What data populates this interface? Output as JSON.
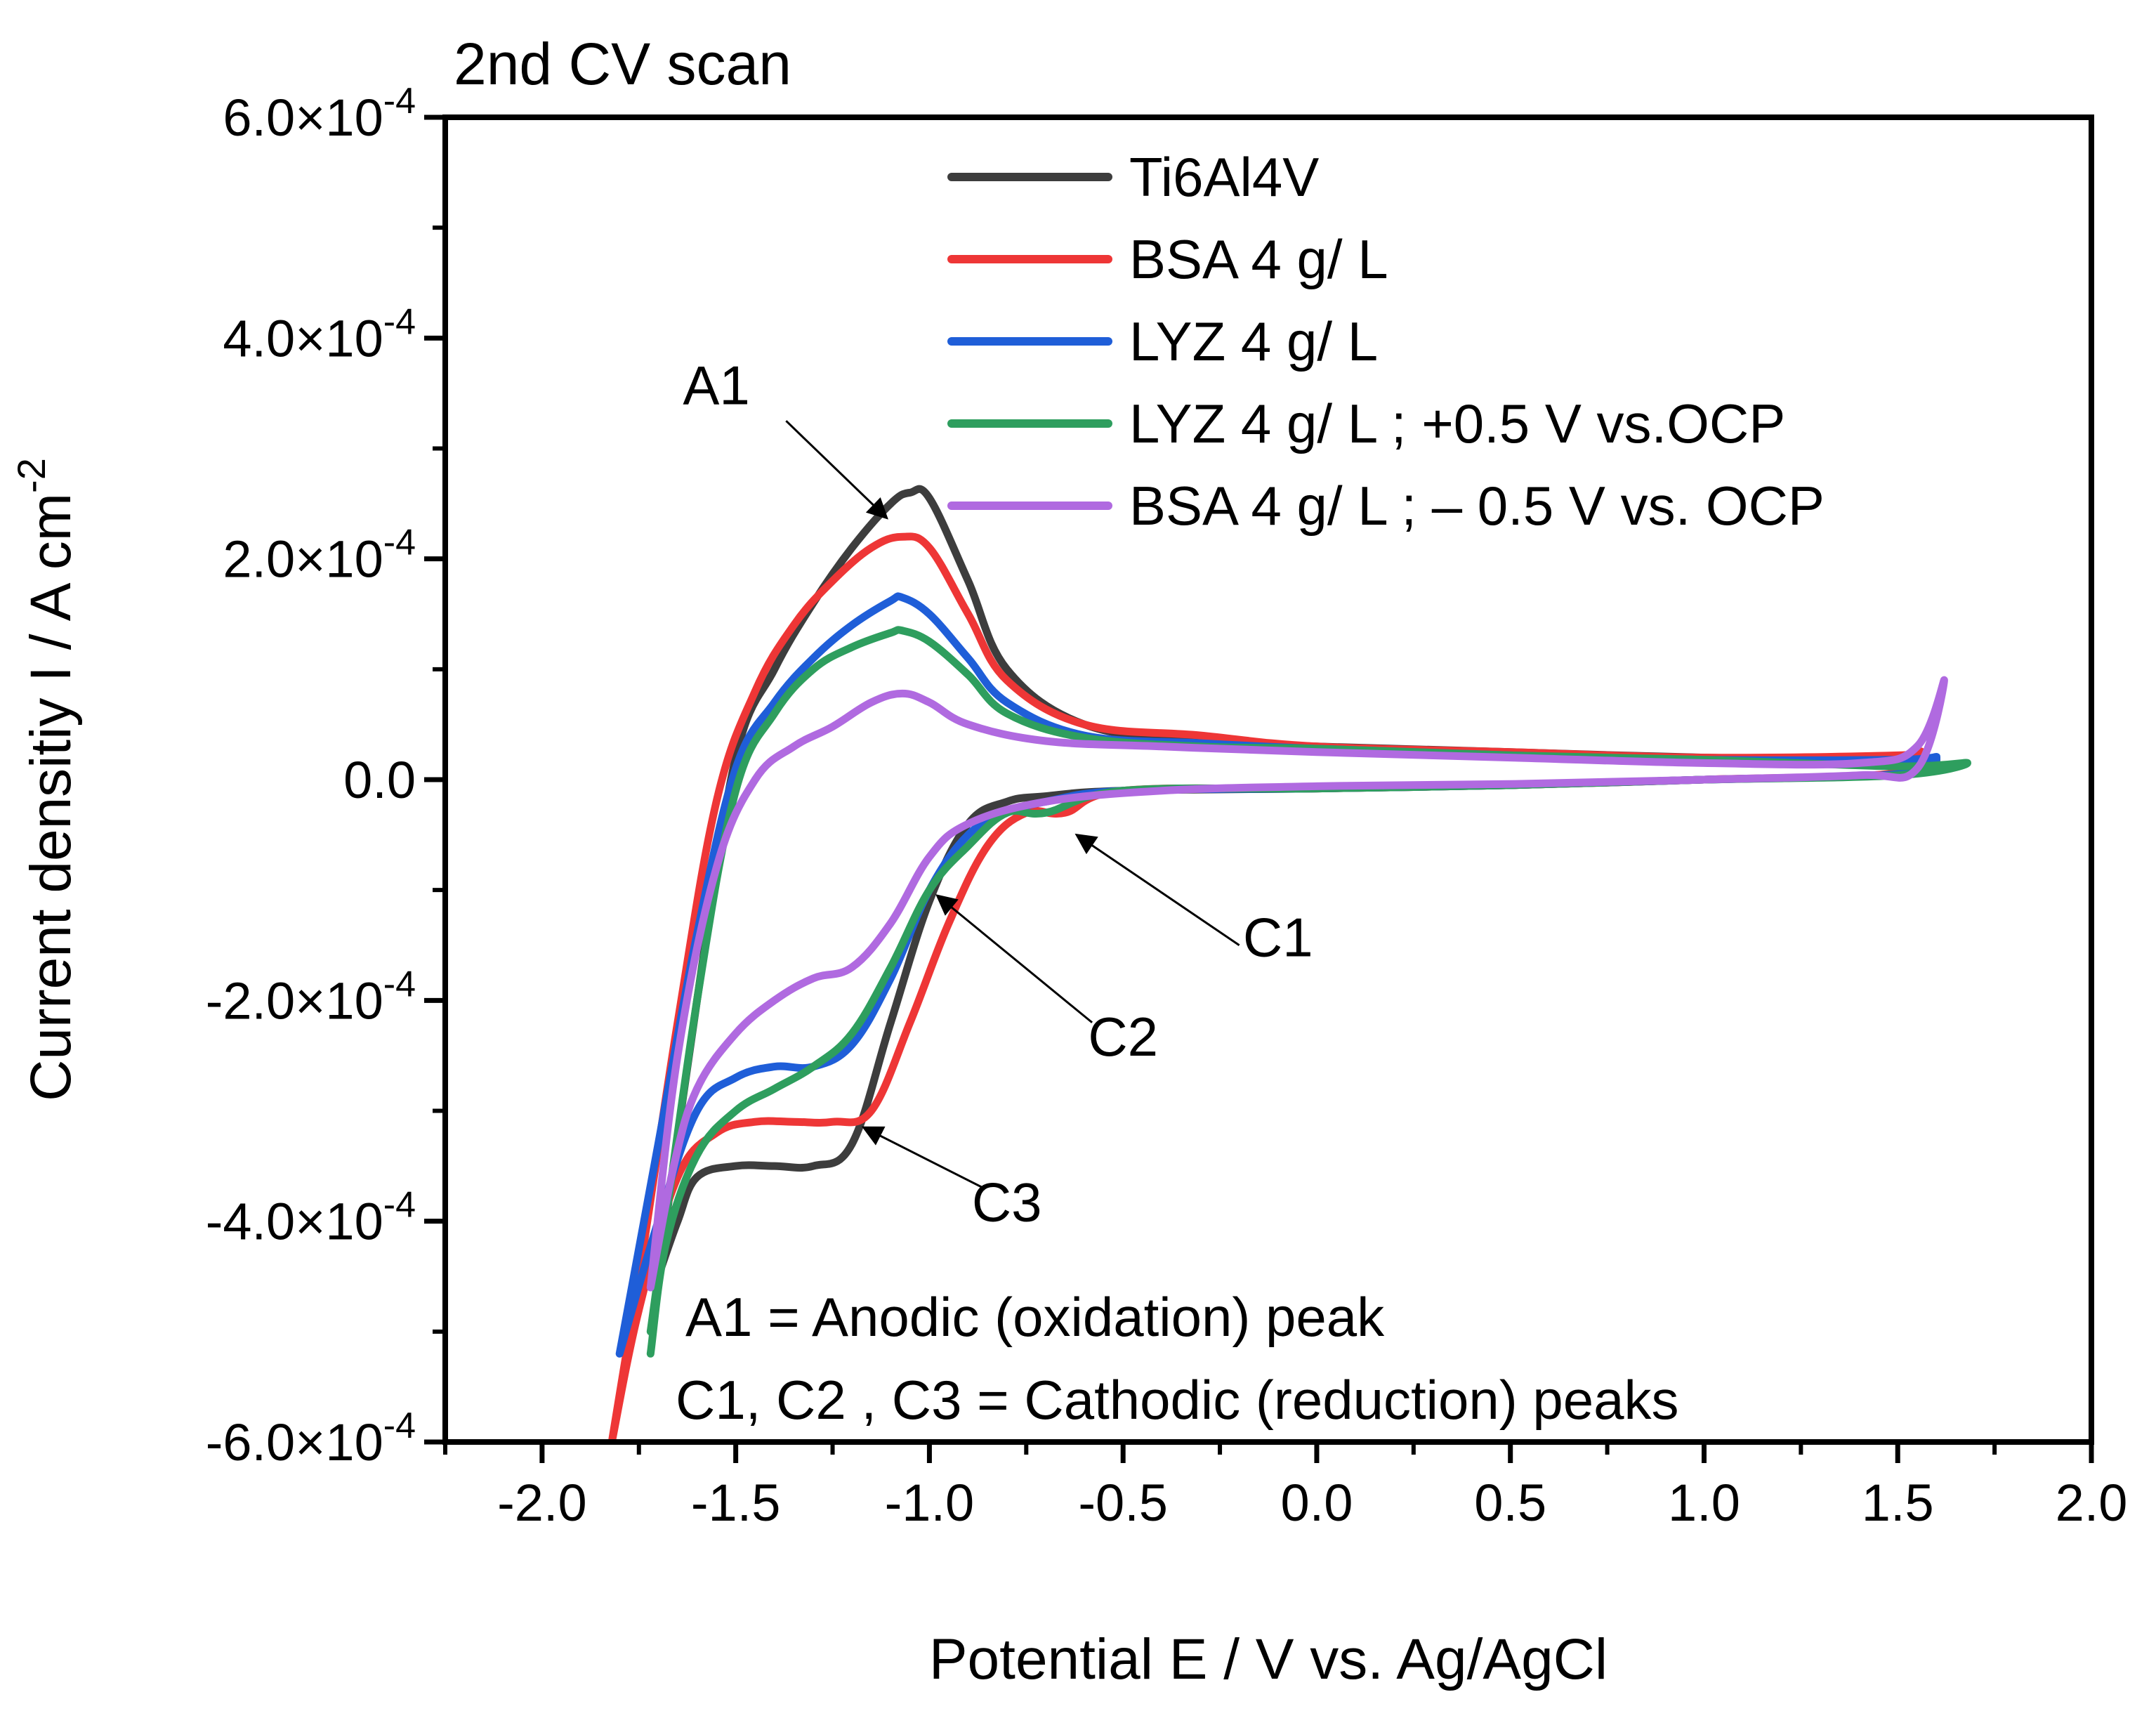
{
  "chart_data": {
    "type": "line",
    "title": "2nd CV scan",
    "xlabel": "Potential E / V vs. Ag/AgCl",
    "ylabel_main": "Current densitiy I / A cm",
    "ylabel_sup": "-2",
    "xlim": [
      -2.25,
      2.0
    ],
    "ylim": [
      -0.0006,
      0.0006
    ],
    "x_ticks": [
      -2.0,
      -1.5,
      -1.0,
      -0.5,
      0.0,
      0.5,
      1.0,
      1.5,
      2.0
    ],
    "x_tick_labels": [
      "-2.0",
      "-1.5",
      "-1.0",
      "-0.5",
      "0.0",
      "0.5",
      "1.0",
      "1.5",
      "2.0"
    ],
    "y_ticks": [
      -0.0006,
      -0.0004,
      -0.0002,
      0.0,
      0.0002,
      0.0004,
      0.0006
    ],
    "y_tick_labels": [
      {
        "base": "-6.0×10",
        "exp": "-4"
      },
      {
        "base": "-4.0×10",
        "exp": "-4"
      },
      {
        "base": "-2.0×10",
        "exp": "-4"
      },
      {
        "base": "0.0",
        "exp": ""
      },
      {
        "base": "2.0×10",
        "exp": "-4"
      },
      {
        "base": "4.0×10",
        "exp": "-4"
      },
      {
        "base": "6.0×10",
        "exp": "-4"
      }
    ],
    "legend_position": "top-right",
    "series": [
      {
        "name": "Ti6Al4V",
        "color": "#3d3d3d",
        "x": [
          -1.7,
          -1.6,
          -1.5,
          -1.4,
          -1.3,
          -1.2,
          -1.1,
          -1.05,
          -1.0,
          -0.9,
          -0.8,
          -0.6,
          -0.3,
          0.0,
          0.5,
          1.0,
          1.5,
          1.6,
          1.5,
          1.0,
          0.5,
          0.0,
          -0.5,
          -0.7,
          -0.8,
          -0.9,
          -1.0,
          -1.1,
          -1.2,
          -1.3,
          -1.4,
          -1.5,
          -1.6,
          -1.65,
          -1.7
        ],
        "y": [
          -0.00045,
          -0.0002,
          2e-05,
          0.0001,
          0.00016,
          0.00021,
          0.00025,
          0.00026,
          0.000255,
          0.00018,
          0.0001,
          5e-05,
          3.5e-05,
          3e-05,
          2.5e-05,
          2e-05,
          1.8e-05,
          1.9e-05,
          5e-06,
          0.0,
          -5e-06,
          -8e-06,
          -1e-05,
          -1.5e-05,
          -2e-05,
          -4e-05,
          -0.00011,
          -0.00022,
          -0.00033,
          -0.00035,
          -0.00035,
          -0.00035,
          -0.00036,
          -0.0004,
          -0.00045
        ]
      },
      {
        "name": "BSA 4 g/ L",
        "color": "#ee3636",
        "x": [
          -1.82,
          -1.75,
          -1.65,
          -1.55,
          -1.45,
          -1.35,
          -1.25,
          -1.15,
          -1.07,
          -1.0,
          -0.9,
          -0.8,
          -0.6,
          -0.3,
          0.0,
          0.5,
          1.0,
          1.5,
          1.55,
          1.5,
          1.0,
          0.5,
          0.0,
          -0.5,
          -0.65,
          -0.75,
          -0.85,
          -0.95,
          -1.05,
          -1.15,
          -1.25,
          -1.35,
          -1.45,
          -1.55,
          -1.65,
          -1.75,
          -1.82
        ],
        "y": [
          -0.0006,
          -0.00045,
          -0.00022,
          -2e-05,
          8e-05,
          0.00014,
          0.00018,
          0.00021,
          0.00022,
          0.00021,
          0.00015,
          9e-05,
          5e-05,
          4e-05,
          3e-05,
          2.5e-05,
          2e-05,
          2.2e-05,
          2.5e-05,
          6e-06,
          0.0,
          -5e-06,
          -8e-06,
          -1e-05,
          -3e-05,
          -3e-05,
          -6e-05,
          -0.00013,
          -0.00022,
          -0.0003,
          -0.00031,
          -0.00031,
          -0.00031,
          -0.00032,
          -0.00036,
          -0.00048,
          -0.0006
        ]
      },
      {
        "name": "LYZ  4 g/ L",
        "color": "#1f5ed8",
        "x": [
          -1.8,
          -1.7,
          -1.6,
          -1.5,
          -1.4,
          -1.3,
          -1.2,
          -1.1,
          -1.07,
          -1.0,
          -0.9,
          -0.8,
          -0.6,
          -0.3,
          0.0,
          0.5,
          1.0,
          1.5,
          1.6,
          1.5,
          1.0,
          0.5,
          0.0,
          -0.5,
          -0.7,
          -0.8,
          -0.9,
          -1.0,
          -1.1,
          -1.2,
          -1.3,
          -1.4,
          -1.5,
          -1.6,
          -1.7,
          -1.8
        ],
        "y": [
          -0.00052,
          -0.00033,
          -0.00014,
          1e-05,
          7e-05,
          0.00011,
          0.00014,
          0.000162,
          0.000165,
          0.00015,
          0.00011,
          7e-05,
          4e-05,
          3.3e-05,
          2.8e-05,
          2.2e-05,
          1.8e-05,
          1.8e-05,
          2e-05,
          5e-06,
          0.0,
          -5e-06,
          -8e-06,
          -1e-05,
          -2e-05,
          -3e-05,
          -5e-05,
          -0.0001,
          -0.00018,
          -0.00024,
          -0.00026,
          -0.00026,
          -0.00027,
          -0.0003,
          -0.0004,
          -0.00052
        ]
      },
      {
        "name": "LYZ 4 g/ L ; +0.5 V vs.OCP",
        "color": "#2e9e5e",
        "x": [
          -1.72,
          -1.6,
          -1.5,
          -1.4,
          -1.3,
          -1.2,
          -1.1,
          -1.07,
          -1.0,
          -0.9,
          -0.8,
          -0.6,
          -0.3,
          0.0,
          0.5,
          1.0,
          1.5,
          1.68,
          1.5,
          1.0,
          0.5,
          0.0,
          -0.5,
          -0.7,
          -0.8,
          -0.9,
          -1.0,
          -1.1,
          -1.2,
          -1.3,
          -1.4,
          -1.5,
          -1.6,
          -1.68,
          -1.72
        ],
        "y": [
          -0.0005,
          -0.0002,
          -1e-05,
          6e-05,
          0.0001,
          0.00012,
          0.000133,
          0.000135,
          0.000125,
          9.5e-05,
          6e-05,
          3.8e-05,
          3e-05,
          2.8e-05,
          2.2e-05,
          1.8e-05,
          1.2e-05,
          1.5e-05,
          4e-06,
          0.0,
          -5e-06,
          -8e-06,
          -1e-05,
          -3e-05,
          -3e-05,
          -6e-05,
          -0.0001,
          -0.00017,
          -0.00023,
          -0.00026,
          -0.00028,
          -0.0003,
          -0.00034,
          -0.00042,
          -0.00052
        ]
      },
      {
        "name": "BSA 4 g/ L ; – 0.5 V vs. OCP",
        "color": "#b06ae0",
        "x": [
          -1.72,
          -1.65,
          -1.55,
          -1.45,
          -1.35,
          -1.25,
          -1.15,
          -1.07,
          -1.0,
          -0.9,
          -0.7,
          -0.4,
          0.0,
          0.5,
          1.0,
          1.4,
          1.55,
          1.62,
          1.55,
          1.4,
          1.0,
          0.5,
          0.0,
          -0.4,
          -0.7,
          -0.9,
          -1.0,
          -1.1,
          -1.2,
          -1.3,
          -1.4,
          -1.5,
          -1.6,
          -1.66,
          -1.72
        ],
        "y": [
          -0.00046,
          -0.00025,
          -8e-05,
          0.0,
          3e-05,
          4.8e-05,
          7e-05,
          7.8e-05,
          7e-05,
          5e-05,
          3.5e-05,
          3e-05,
          2.5e-05,
          2e-05,
          1.5e-05,
          1.5e-05,
          3e-05,
          9e-05,
          1e-05,
          4e-06,
          0.0,
          -4e-06,
          -6e-06,
          -1e-05,
          -2e-05,
          -4e-05,
          -7e-05,
          -0.00013,
          -0.00017,
          -0.00018,
          -0.0002,
          -0.00023,
          -0.00028,
          -0.00035,
          -0.00046
        ]
      }
    ],
    "annotations": [
      {
        "label": "A1",
        "text_x": -1.55,
        "text_y": 0.00034,
        "arrow_from": [
          -1.37,
          0.000325
        ],
        "arrow_to": [
          -1.11,
          0.000237
        ]
      },
      {
        "label": "C1",
        "text_x": -0.1,
        "text_y": -0.00016,
        "arrow_from": [
          -0.2,
          -0.00015
        ],
        "arrow_to": [
          -0.62,
          -5e-05
        ]
      },
      {
        "label": "C2",
        "text_x": -0.5,
        "text_y": -0.00025,
        "arrow_from": [
          -0.58,
          -0.00022
        ],
        "arrow_to": [
          -0.98,
          -0.000105
        ]
      },
      {
        "label": "C3",
        "text_x": -0.8,
        "text_y": -0.0004,
        "arrow_from": [
          -0.86,
          -0.00037
        ],
        "arrow_to": [
          -1.17,
          -0.000315
        ]
      }
    ],
    "notes": [
      "A1 = Anodic (oxidation) peak",
      "C1, C2 , C3 = Cathodic (reduction) peaks"
    ]
  }
}
